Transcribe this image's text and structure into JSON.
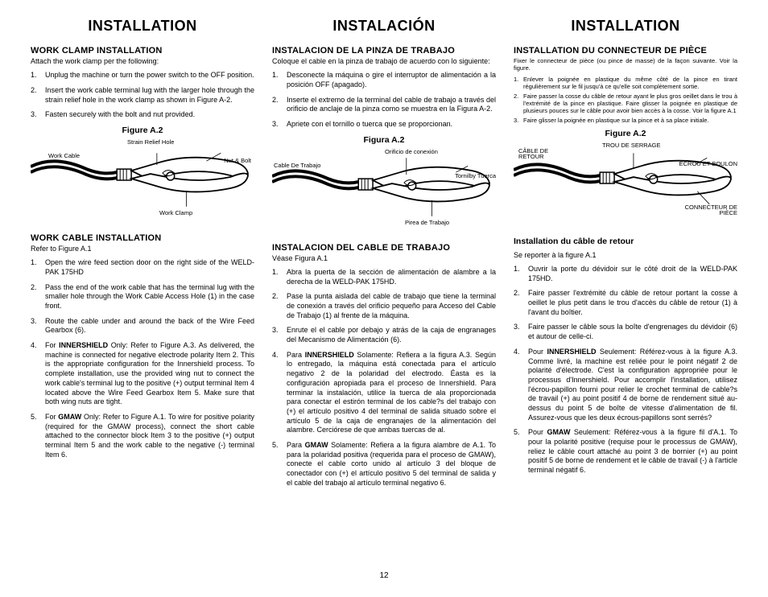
{
  "page_number": "12",
  "columns": [
    {
      "title": "INSTALLATION",
      "sections": [
        {
          "heading": "WORK CLAMP INSTALLATION",
          "intro": "Attach the work clamp per the following:",
          "steps": [
            "Unplug the machine or turn the power switch to the OFF position.",
            "Insert the work cable terminal lug with the larger hole through the strain relief hole in the work clamp as shown in Figure A-2.",
            "Fasten securely with the bolt and nut provided."
          ]
        },
        {
          "figure": {
            "caption": "Figure A.2",
            "labels": {
              "cable": "Work Cable",
              "relief": "Strain Relief Hole",
              "nutbolt": "Nut & Bolt",
              "clamp": "Work Clamp"
            }
          }
        },
        {
          "heading": "WORK CABLE INSTALLATION",
          "intro": "Refer to Figure A.1",
          "steps": [
            "Open the wire feed section door on the right side of the WELD-PAK 175HD",
            "Pass the end of the work cable that has the terminal lug with the smaller hole through the Work Cable Access Hole (1) in the case front.",
            "Route the cable under and around the back of the Wire Feed Gearbox (6).",
            "For <b>INNERSHIELD</b> Only: Refer to Figure A.3. As delivered, the machine is connected for negative electrode polarity Item 2. This is the appropriate configuration for the Innershield process. To complete installation, use the provided wing nut to connect the work cable's terminal lug to the positive (+) output terminal Item 4 located above the Wire Feed Gearbox Item 5. Make sure that both wing nuts are tight.",
            "For <b>GMAW</b> Only: Refer to Figure A.1. To wire for positive polarity (required for the GMAW process), connect the short cable attached to the connector block Item 3 to the positive (+) output terminal Item 5 and the work cable to the negative (-) terminal Item 6."
          ]
        }
      ]
    },
    {
      "title": "INSTALACIÓN",
      "sections": [
        {
          "heading": "INSTALACION DE LA PINZA DE TRABAJO",
          "intro": "Coloque el cable en la pinza de trabajo de acuerdo con lo siguiente:",
          "steps": [
            "Desconecte la máquina o gire el interruptor de alimentación a la posición OFF (apagado).",
            "Inserte el extremo de la terminal del cable de trabajo a través del orificio de anclaje de la pinza como se muestra en la Figura A-2.",
            "Apriete con el tornillo o tuerca que se proporcionan."
          ]
        },
        {
          "figure": {
            "caption": "Figura A.2",
            "labels": {
              "cable": "Cable De Trabajo",
              "relief": "Orificio de conexión",
              "nutbolt": "Tornilby Tuerca",
              "clamp": "Pirea de Trabajo"
            }
          }
        },
        {
          "heading": "INSTALACION DEL CABLE DE TRABAJO",
          "intro": "Véase Figura A.1",
          "steps": [
            "Abra la puerta de la sección de alimentación de alambre a la derecha de la WELD-PAK 175HD.",
            "Pase la punta aislada del cable de trabajo que tiene la terminal de conexión a través del orificio pequeño para Acceso del Cable de Trabajo (1) al frente de la máquina.",
            "Enrute el el cable por debajo y atrás de la caja de engranages del Mecanismo de Alimentación (6).",
            "Para <b>INNERSHIELD</b> Solamente: Refiera a la figura A.3. Según lo entregado, la máquina está conectada para el artículo negativo 2 de la polaridad del electrodo. Éasta es la configuración apropiada para el proceso de Innershield. Para terminar la instalación, utilice la tuerca de ala proporcionada para conectar el estirón terminal de los cable?s del trabajo con (+) el artículo positivo 4 del terminal de salida situado sobre el artículo 5 de la caja de engranajes de la alimentación del alambre. Cerciórese de que ambas tuercas de al.",
            "Para <b>GMAW</b> Solamente: Refiera a la figura alambre de A.1. To para la polaridad positiva (requerida para el proceso de GMAW), conecte el cable corto unido al artículo 3 del bloque de conectador con (+) el artículo positivo 5 del terminal de salida y el cable del trabajo al artículo terminal negativo 6."
          ]
        }
      ]
    },
    {
      "title": "INSTALLATION",
      "sections": [
        {
          "heading": "INSTALLATION DU CONNECTEUR DE PIÈCE",
          "intro_xs": "Fixer le connecteur de pièce (ou pince de masse) de la façon suivante. Voir la figure.",
          "steps_xs": [
            "Enlever la poignée en plastique du même côté de la pince en tirant régulièrement sur le fil jusqu'à ce qu'elle soit complètement sortie.",
            "Faire passer la cosse du câble de retour ayant le plus gros oeillet dans le trou à l'extrémité de la pince en plastique. Faire glisser la poignée en plastique de plusieurs pouces sur le câble pour avoir bien accès à la cosse. Voir la figure A.1",
            "Faire glisser la poignée en plastique sur la pince et à sa place initiale."
          ]
        },
        {
          "figure": {
            "caption": "Figure A.2",
            "labels": {
              "cable": "CÂBLE DE RETOUR",
              "relief": "TROU DE SERRAGE",
              "nutbolt": "ÉCROU ET BOULON",
              "clamp": "CONNECTEUR DE PIÈCE"
            }
          }
        },
        {
          "heading_sm": "Installation du câble de retour",
          "intro": "Se reporter à la figure A.1",
          "steps": [
            "Ouvrir la porte du dévidoir sur le côté droit de la WELD-PAK 175HD.",
            "Faire passer l'extrémité du câble de retour portant la cosse à oeillet le plus petit dans le trou d'accès du câble de retour (1) à l'avant du boîtier.",
            "Faire passer le câble sous la boîte d'engrenages du dévidoir (6) et autour de celle-ci.",
            "Pour <b>INNERSHIELD</b> Seulement: Référez-vous à la figure A.3. Comme livré, la machine est reliée pour le point négatif 2 de polarité d'électrode. C'est la configuration appropriée pour le processus d'Innershield. Pour accomplir l'installation, utilisez l'écrou-papillon fourni pour relier le crochet terminal de cable?s de travail (+) au point positif 4 de borne de rendement situé au-dessus du point 5 de boîte de vitesse d'alimentation de fil. Assurez-vous que les deux écrous-papillons sont serrés?",
            "Pour <b>GMAW</b> Seulement: Référez-vous à la figure fil d'A.1. To pour la polarité positive (requise pour le processus de GMAW), reliez le câble court attaché au point 3 de bornier (+) au point positif 5 de borne de rendement et le câble de travail (-) à l'article terminal négatif 6."
          ]
        }
      ]
    }
  ],
  "clamp_svg": {
    "stroke": "#000000",
    "stroke_width": 1.8,
    "fill": "#ffffff"
  }
}
